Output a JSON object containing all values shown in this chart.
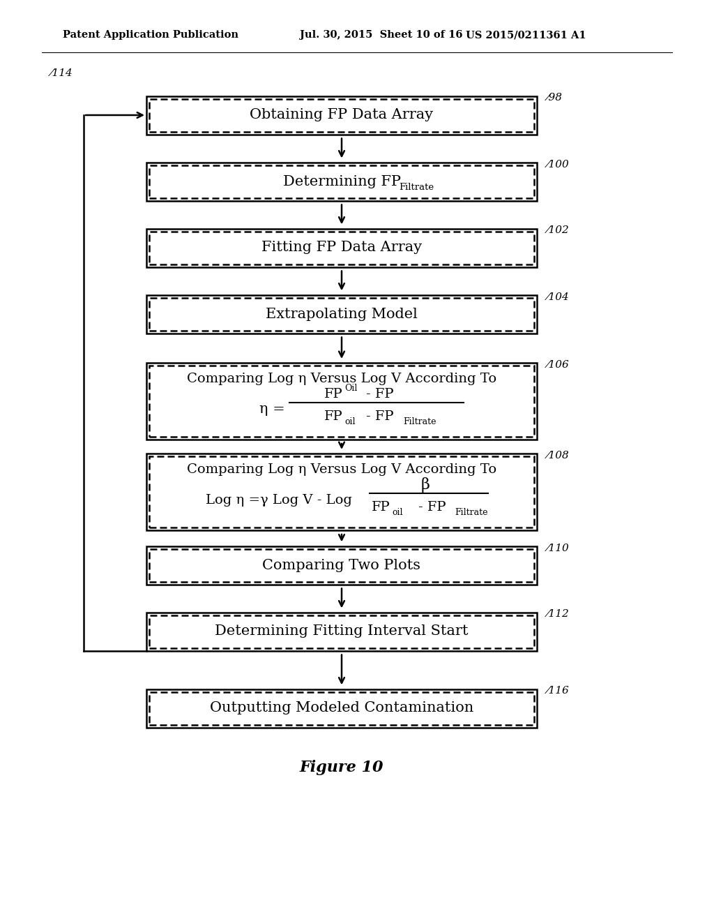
{
  "header_left": "Patent Application Publication",
  "header_mid": "Jul. 30, 2015  Sheet 10 of 16",
  "header_right": "US 2015/0211361 A1",
  "figure_caption": "Figure 10",
  "background_color": "#ffffff",
  "box_edge_color": "#000000",
  "box_fill_color": "#ffffff",
  "arrow_color": "#000000",
  "text_color": "#000000",
  "loop_label": "114"
}
